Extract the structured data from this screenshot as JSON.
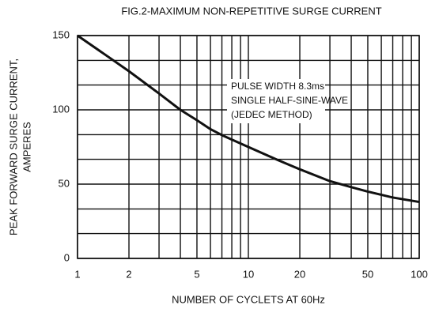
{
  "chart_data": {
    "type": "line",
    "title": "FIG.2-MAXIMUM NON-REPETITIVE  SURGE CURRENT",
    "xlabel": "NUMBER OF CYCLETS AT 60Hz",
    "ylabel": [
      "PEAK FORWARD SURGE CURRENT,",
      "AMPERES"
    ],
    "annotations": [
      "PULSE WIDTH 8.3ms",
      "SINGLE HALF-SINE-WAVE",
      "(JEDEC METHOD)"
    ],
    "x": [
      1,
      1.5,
      2,
      3,
      4,
      5,
      6,
      7,
      8,
      10,
      15,
      20,
      30,
      40,
      50,
      70,
      100
    ],
    "series": [
      {
        "name": "surge current",
        "color": "#111111",
        "values": [
          150,
          136,
          126,
          111,
          100,
          93,
          87,
          83,
          80,
          75,
          66,
          60,
          52,
          48,
          45,
          41,
          38
        ]
      }
    ],
    "xscale": "log",
    "xlim": [
      1,
      100
    ],
    "xticks": [
      1,
      2,
      5,
      10,
      20,
      50,
      100
    ],
    "xgrid": [
      3,
      4,
      6,
      7,
      8,
      9,
      30,
      40,
      60,
      70,
      80,
      90
    ],
    "ylim": [
      0,
      150
    ],
    "yticks": [
      0,
      50,
      100,
      150
    ],
    "ygrid": [
      16.7,
      33.3,
      66.7,
      83.3,
      116.7,
      133.3
    ],
    "grid": true
  }
}
